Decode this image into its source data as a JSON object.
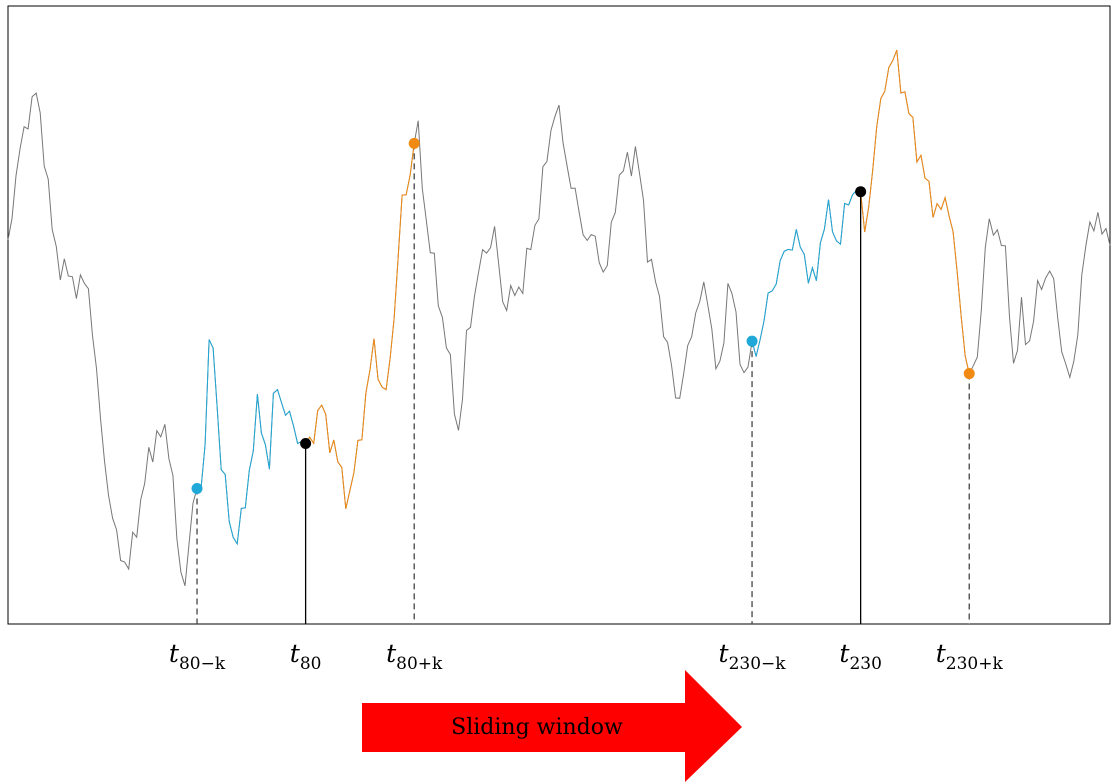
{
  "colors": {
    "base_series": "#777777",
    "left_window": "#1fa8d8",
    "right_window": "#f08a12",
    "center_marker": "#000000",
    "frame": "#000000",
    "arrow": "#ff0000",
    "dashed_line": "#444444"
  },
  "series_sample_count": 275,
  "windows": [
    {
      "id": "w80",
      "start_index": 47,
      "center_index": 74,
      "end_index": 101,
      "labels": {
        "start": {
          "main": "t",
          "sub": "80−k"
        },
        "center": {
          "main": "t",
          "sub": "80"
        },
        "end": {
          "main": "t",
          "sub": "80+k"
        }
      }
    },
    {
      "id": "w230",
      "start_index": 185,
      "center_index": 212,
      "end_index": 239,
      "labels": {
        "start": {
          "main": "t",
          "sub": "230−k"
        },
        "center": {
          "main": "t",
          "sub": "230"
        },
        "end": {
          "main": "t",
          "sub": "230+k"
        }
      }
    }
  ],
  "arrow": {
    "label": "Sliding window",
    "direction": "right"
  }
}
